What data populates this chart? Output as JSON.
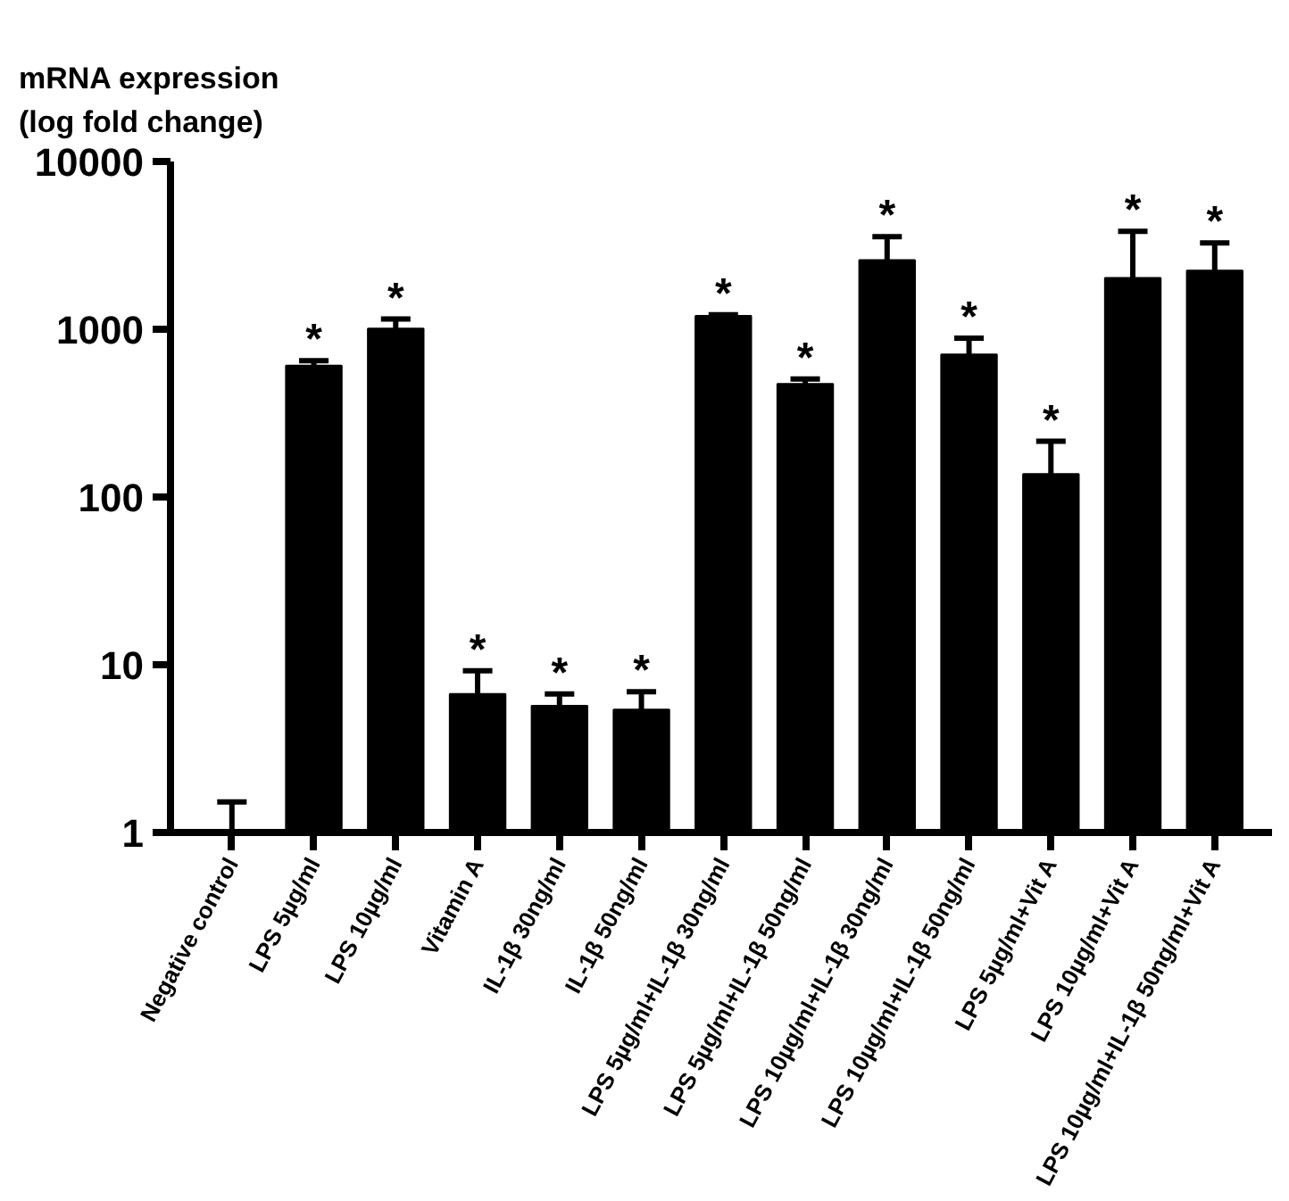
{
  "chart_data": {
    "type": "bar",
    "ylabel": "mRNA expression\n(log fold change)",
    "categories": [
      "Negative control",
      "LPS 5µg/ml",
      "LPS 10µg/ml",
      "Vitamin A",
      "IL-1β 30ng/ml",
      "IL-1β 50ng/ml",
      "LPS 5µg/ml+IL-1β 30ng/ml",
      "LPS 5µg/ml+IL-1β 50ng/ml",
      "LPS 10µg/ml+IL-1β 30ng/ml",
      "LPS 10µg/ml+IL-1β 50ng/ml",
      "LPS 5µg/ml+Vit A",
      "LPS 10µg/ml+Vit A",
      "LPS 10µg/ml+IL-1β 50ng/ml+Vit A"
    ],
    "values": [
      1.03,
      608,
      1010,
      6.7,
      5.7,
      5.4,
      1200,
      472,
      2580,
      707,
      137,
      2020,
      2240
    ],
    "errors": [
      [
        1.03,
        1.52
      ],
      [
        608,
        650
      ],
      [
        1010,
        1150
      ],
      [
        6.7,
        9.2
      ],
      [
        5.7,
        6.7
      ],
      [
        5.4,
        6.9
      ],
      [
        1200,
        1220
      ],
      [
        472,
        505
      ],
      [
        2580,
        3560
      ],
      [
        707,
        886
      ],
      [
        137,
        215
      ],
      [
        2020,
        3830
      ],
      [
        2240,
        3270
      ]
    ],
    "color": "#000000",
    "log": true,
    "ylim": [
      1,
      10000
    ],
    "yticks": [
      1,
      10,
      100,
      1000,
      10000
    ],
    "grid": false,
    "annotations": [
      {
        "text": "*",
        "x": "LPS 5µg/ml",
        "y": 608
      },
      {
        "text": "*",
        "x": "LPS 10µg/ml",
        "y": 1010
      },
      {
        "text": "*",
        "x": "Vitamin A",
        "y": 6.7
      },
      {
        "text": "*",
        "x": "IL-1β 30ng/ml",
        "y": 5.7
      },
      {
        "text": "*",
        "x": "IL-1β 50ng/ml",
        "y": 5.4
      },
      {
        "text": "*",
        "x": "LPS 5µg/ml+IL-1β 30ng/ml",
        "y": 1200
      },
      {
        "text": "*",
        "x": "LPS 5µg/ml+IL-1β 50ng/ml",
        "y": 472
      },
      {
        "text": "*",
        "x": "LPS 10µg/ml+IL-1β 30ng/ml",
        "y": 2580
      },
      {
        "text": "*",
        "x": "LPS 10µg/ml+IL-1β 50ng/ml",
        "y": 707
      },
      {
        "text": "*",
        "x": "LPS 5µg/ml+Vit A",
        "y": 137
      },
      {
        "text": "*",
        "x": "LPS 10µg/ml+Vit A",
        "y": 2020
      },
      {
        "text": "*",
        "x": "LPS 10µg/ml+IL-1β 50ng/ml+Vit A",
        "y": 2240
      }
    ]
  }
}
